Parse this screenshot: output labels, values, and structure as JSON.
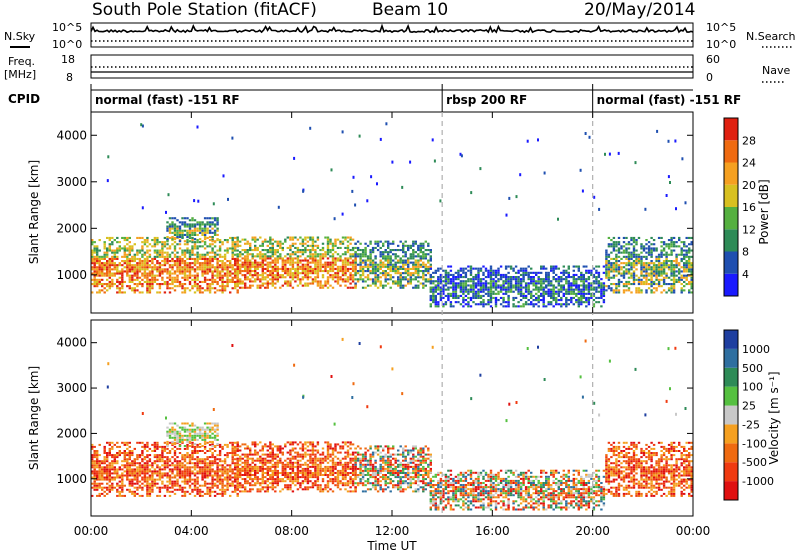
{
  "header": {
    "station": "South Pole Station (fitACF)",
    "beam": "Beam 10",
    "date": "20/May/2014"
  },
  "side_labels": {
    "nsky": "N.Sky",
    "nsearch": "N.Search",
    "freq_top": "Freq.",
    "freq_unit": "[MHz]",
    "nave": "Nave",
    "cpid": "CPID"
  },
  "nsky_axis": {
    "top": "10^5",
    "bottom": "10^0"
  },
  "nsearch_axis": {
    "top": "10^5",
    "bottom": "10^0"
  },
  "freq_axis": {
    "top": "18",
    "bottom": "8"
  },
  "nave_axis": {
    "top": "60",
    "bottom": "0"
  },
  "cpid_segments": [
    {
      "label": "normal (fast) -151 RF",
      "start_hour": 0,
      "end_hour": 14.0
    },
    {
      "label": "rbsp 200 RF",
      "start_hour": 14.0,
      "end_hour": 20.0
    },
    {
      "label": "normal (fast) -151 RF",
      "start_hour": 20.0,
      "end_hour": 24.0
    }
  ],
  "x_axis": {
    "label": "Time UT",
    "ticks": [
      "00:00",
      "04:00",
      "08:00",
      "12:00",
      "16:00",
      "20:00",
      "00:00"
    ]
  },
  "power_panel": {
    "ylabel": "Slant Range [km]",
    "yticks": [
      "1000",
      "2000",
      "3000",
      "4000"
    ],
    "colorbar_label": "Power [dB]",
    "colorbar_ticks": [
      "4",
      "8",
      "12",
      "16",
      "20",
      "24",
      "28"
    ],
    "colors": [
      "#1a1aff",
      "#1f4fb0",
      "#2e8b57",
      "#55b040",
      "#d8c020",
      "#f5a020",
      "#ef6a10",
      "#e02010"
    ]
  },
  "velocity_panel": {
    "ylabel": "Slant Range [km]",
    "yticks": [
      "1000",
      "2000",
      "3000",
      "4000"
    ],
    "colorbar_label": "Velocity [m s⁻¹]",
    "colorbar_ticks": [
      "1000",
      "500",
      "100",
      "25",
      "-25",
      "-100",
      "-500",
      "-1000"
    ],
    "colors": [
      "#1f3fa0",
      "#2f6fa0",
      "#2e8b57",
      "#55c040",
      "#c8c8c8",
      "#f5a020",
      "#ef6a10",
      "#f03a10",
      "#e01010"
    ]
  },
  "chart_data": {
    "type": "heatmap",
    "x_range_hours": [
      0,
      24
    ],
    "y_range_km": [
      180,
      4500
    ],
    "echo_regions": [
      {
        "t0": 0.0,
        "t1": 5.8,
        "r0": 600,
        "r1": 1800,
        "power": "high",
        "velocity": "negative"
      },
      {
        "t0": 3.0,
        "t1": 5.0,
        "r0": 1700,
        "r1": 2200,
        "power": "moderate",
        "velocity": "near-zero"
      },
      {
        "t0": 5.8,
        "t1": 10.5,
        "r0": 700,
        "r1": 1800,
        "power": "high",
        "velocity": "negative"
      },
      {
        "t0": 10.5,
        "t1": 13.5,
        "r0": 700,
        "r1": 1700,
        "power": "moderate",
        "velocity": "mixed"
      },
      {
        "t0": 13.5,
        "t1": 20.5,
        "r0": 300,
        "r1": 1200,
        "power": "low",
        "velocity": "mixed"
      },
      {
        "t0": 20.5,
        "t1": 24.0,
        "r0": 600,
        "r1": 1800,
        "power": "moderate",
        "velocity": "negative"
      }
    ]
  }
}
